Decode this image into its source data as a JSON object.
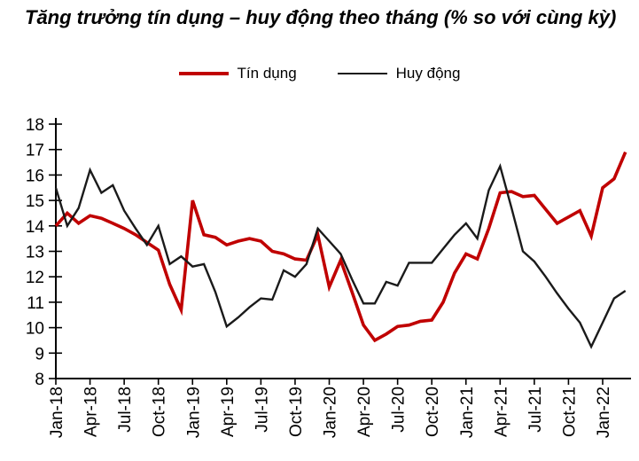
{
  "title": "Tăng trưởng tín dụng – huy động theo tháng (% so với cùng kỳ)",
  "colors": {
    "credit": "#C00000",
    "deposit": "#1A1A1A",
    "axis": "#000000",
    "background": "#FFFFFF"
  },
  "legend": [
    {
      "label": "Tín dụng",
      "color": "#C00000"
    },
    {
      "label": "Huy động",
      "color": "#1A1A1A"
    }
  ],
  "chart_data": {
    "type": "line",
    "title": "Tăng trưởng tín dụng – huy động theo tháng (% so với cùng kỳ)",
    "xlabel": "",
    "ylabel": "",
    "ylim": [
      8,
      18
    ],
    "y_ticks": [
      8,
      9,
      10,
      11,
      12,
      13,
      14,
      15,
      16,
      17,
      18
    ],
    "x_tick_every": 3,
    "grid": false,
    "legend_position": "top",
    "x": [
      "Jan-18",
      "Feb-18",
      "Mar-18",
      "Apr-18",
      "May-18",
      "Jun-18",
      "Jul-18",
      "Aug-18",
      "Sep-18",
      "Oct-18",
      "Nov-18",
      "Dec-18",
      "Jan-19",
      "Feb-19",
      "Mar-19",
      "Apr-19",
      "May-19",
      "Jun-19",
      "Jul-19",
      "Aug-19",
      "Sep-19",
      "Oct-19",
      "Nov-19",
      "Dec-19",
      "Jan-20",
      "Feb-20",
      "Mar-20",
      "Apr-20",
      "May-20",
      "Jun-20",
      "Jul-20",
      "Aug-20",
      "Sep-20",
      "Oct-20",
      "Nov-20",
      "Dec-20",
      "Jan-21",
      "Feb-21",
      "Mar-21",
      "Apr-21",
      "May-21",
      "Jun-21",
      "Jul-21",
      "Aug-21",
      "Sep-21",
      "Oct-21",
      "Nov-21",
      "Dec-21",
      "Jan-22",
      "Feb-22",
      "Mar-22"
    ],
    "series": [
      {
        "name": "Tín dụng",
        "color": "#C00000",
        "width": 3.6,
        "values": [
          14.0,
          14.5,
          14.1,
          14.4,
          14.3,
          14.1,
          13.9,
          13.65,
          13.35,
          13.05,
          11.7,
          10.7,
          15.0,
          13.65,
          13.55,
          13.25,
          13.4,
          13.5,
          13.4,
          13.0,
          12.9,
          12.7,
          12.65,
          13.65,
          11.6,
          12.65,
          11.4,
          10.1,
          9.5,
          9.75,
          10.05,
          10.1,
          10.25,
          10.3,
          11.0,
          12.15,
          12.9,
          12.7,
          13.9,
          15.3,
          15.35,
          15.15,
          15.2,
          14.65,
          14.1,
          14.35,
          14.6,
          13.6,
          15.5,
          15.85,
          16.9
        ]
      },
      {
        "name": "Huy động",
        "color": "#1A1A1A",
        "width": 2.4,
        "values": [
          15.5,
          14.0,
          14.7,
          16.2,
          15.3,
          15.6,
          14.6,
          13.9,
          13.25,
          14.0,
          12.5,
          12.8,
          12.4,
          12.5,
          11.4,
          10.05,
          10.4,
          10.8,
          11.15,
          11.1,
          12.25,
          12.0,
          12.5,
          13.9,
          13.4,
          12.9,
          11.9,
          10.95,
          10.95,
          11.8,
          11.65,
          12.55,
          12.55,
          12.55,
          13.1,
          13.65,
          14.1,
          13.5,
          15.4,
          16.35,
          14.7,
          13.0,
          12.6,
          12.0,
          11.35,
          10.75,
          10.2,
          9.25,
          10.2,
          11.15,
          11.45
        ]
      }
    ]
  }
}
